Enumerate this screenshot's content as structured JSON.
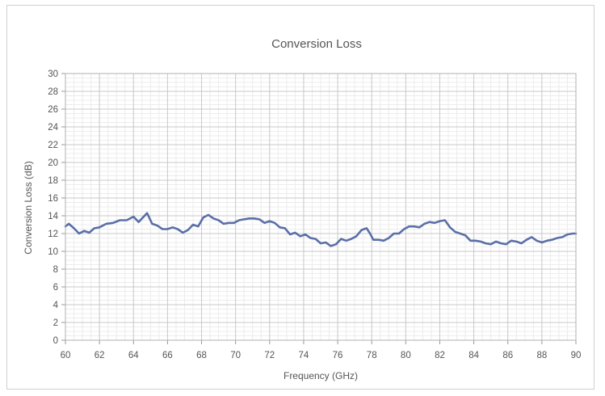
{
  "chart_data": {
    "type": "line",
    "title": "Conversion Loss",
    "xlabel": "Frequency (GHz)",
    "ylabel": "Conversion Loss (dB)",
    "xlim": [
      60,
      90
    ],
    "ylim": [
      0,
      30
    ],
    "x_ticks": [
      "60",
      "62",
      "64",
      "66",
      "68",
      "70",
      "72",
      "74",
      "76",
      "78",
      "80",
      "82",
      "84",
      "86",
      "88",
      "90"
    ],
    "y_ticks": [
      "0",
      "2",
      "4",
      "6",
      "8",
      "10",
      "12",
      "14",
      "16",
      "18",
      "20",
      "22",
      "24",
      "26",
      "28",
      "30"
    ],
    "grid": true,
    "series_color": "#5b6fa8",
    "series": [
      {
        "x": [
          60,
          60.2,
          60.5,
          60.8,
          61.1,
          61.4,
          61.7,
          62,
          62.4,
          62.8,
          63.2,
          63.6,
          64,
          64.3,
          64.5,
          64.8,
          65.1,
          65.4,
          65.7,
          66,
          66.3,
          66.6,
          66.9,
          67.2,
          67.5,
          67.8,
          68.1,
          68.4,
          68.7,
          69,
          69.3,
          69.6,
          69.9,
          70.2,
          70.5,
          70.8,
          71.1,
          71.4,
          71.7,
          72,
          72.3,
          72.6,
          72.9,
          73.2,
          73.5,
          73.8,
          74.1,
          74.4,
          74.7,
          75,
          75.3,
          75.6,
          75.9,
          76.2,
          76.5,
          76.8,
          77.1,
          77.4,
          77.7,
          77.9,
          78.1,
          78.4,
          78.7,
          79,
          79.3,
          79.6,
          79.9,
          80.2,
          80.5,
          80.8,
          81.1,
          81.4,
          81.7,
          82,
          82.3,
          82.6,
          82.9,
          83.2,
          83.5,
          83.8,
          84.1,
          84.4,
          84.7,
          85,
          85.3,
          85.6,
          85.9,
          86.2,
          86.5,
          86.8,
          87.1,
          87.4,
          87.7,
          88,
          88.3,
          88.6,
          88.9,
          89.2,
          89.5,
          89.8,
          90
        ],
        "y": [
          12.8,
          13.1,
          12.6,
          12.0,
          12.3,
          12.1,
          12.6,
          12.7,
          13.1,
          13.2,
          13.5,
          13.5,
          13.9,
          13.3,
          13.7,
          14.3,
          13.1,
          12.9,
          12.5,
          12.5,
          12.7,
          12.5,
          12.1,
          12.4,
          13.0,
          12.8,
          13.8,
          14.1,
          13.7,
          13.5,
          13.1,
          13.2,
          13.2,
          13.5,
          13.6,
          13.7,
          13.7,
          13.6,
          13.2,
          13.4,
          13.2,
          12.7,
          12.6,
          11.9,
          12.1,
          11.7,
          11.9,
          11.5,
          11.4,
          10.9,
          11.0,
          10.6,
          10.8,
          11.4,
          11.2,
          11.4,
          11.7,
          12.4,
          12.6,
          12.0,
          11.3,
          11.3,
          11.2,
          11.5,
          12.0,
          12.0,
          12.5,
          12.8,
          12.8,
          12.7,
          13.1,
          13.3,
          13.2,
          13.4,
          13.5,
          12.7,
          12.2,
          12.0,
          11.8,
          11.2,
          11.2,
          11.1,
          10.9,
          10.8,
          11.1,
          10.9,
          10.8,
          11.2,
          11.1,
          10.9,
          11.3,
          11.6,
          11.2,
          11.0,
          11.2,
          11.3,
          11.5,
          11.6,
          11.9,
          12.0,
          12.0
        ]
      }
    ]
  }
}
